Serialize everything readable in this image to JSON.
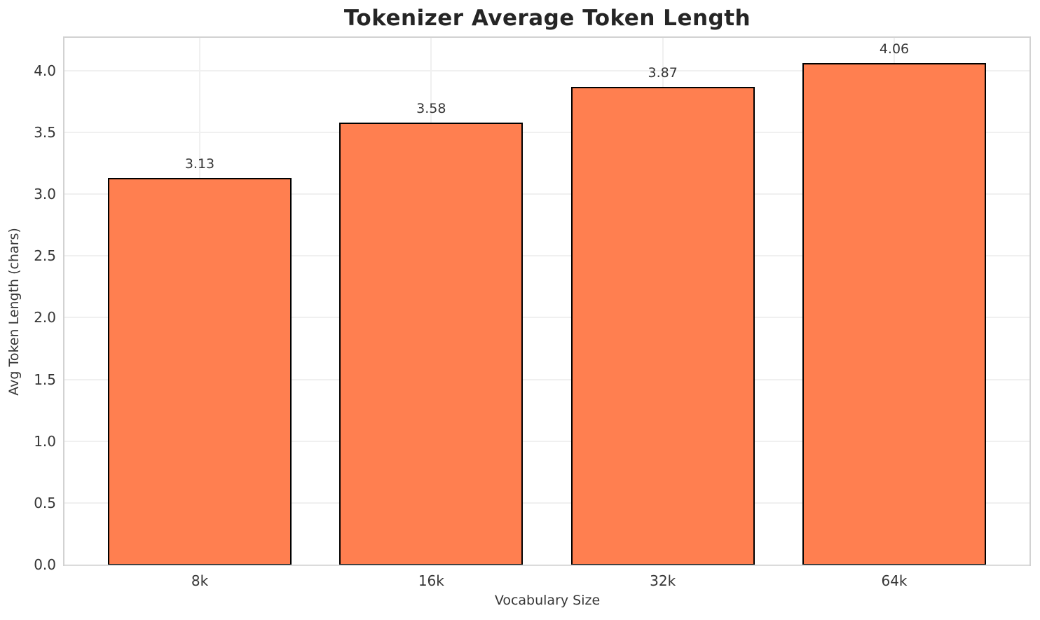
{
  "chart_data": {
    "type": "bar",
    "title": "Tokenizer Average Token Length",
    "xlabel": "Vocabulary Size",
    "ylabel": "Avg Token Length (chars)",
    "categories": [
      "8k",
      "16k",
      "32k",
      "64k"
    ],
    "values": [
      3.13,
      3.58,
      3.87,
      4.06
    ],
    "value_labels": [
      "3.13",
      "3.58",
      "3.87",
      "4.06"
    ],
    "yticks": [
      0.0,
      0.5,
      1.0,
      1.5,
      2.0,
      2.5,
      3.0,
      3.5,
      4.0
    ],
    "ytick_labels": [
      "0.0",
      "0.5",
      "1.0",
      "1.5",
      "2.0",
      "2.5",
      "3.0",
      "3.5",
      "4.0"
    ],
    "ylim": [
      0,
      4.265
    ],
    "grid": true,
    "legend": false,
    "bar_color": "#FF7F50",
    "bar_edge_color": "#000000",
    "grid_color": "#F0F0F0",
    "spine_color": "#D2D2D2",
    "text_color": "#363636",
    "background_color": "#FFFFFF"
  }
}
